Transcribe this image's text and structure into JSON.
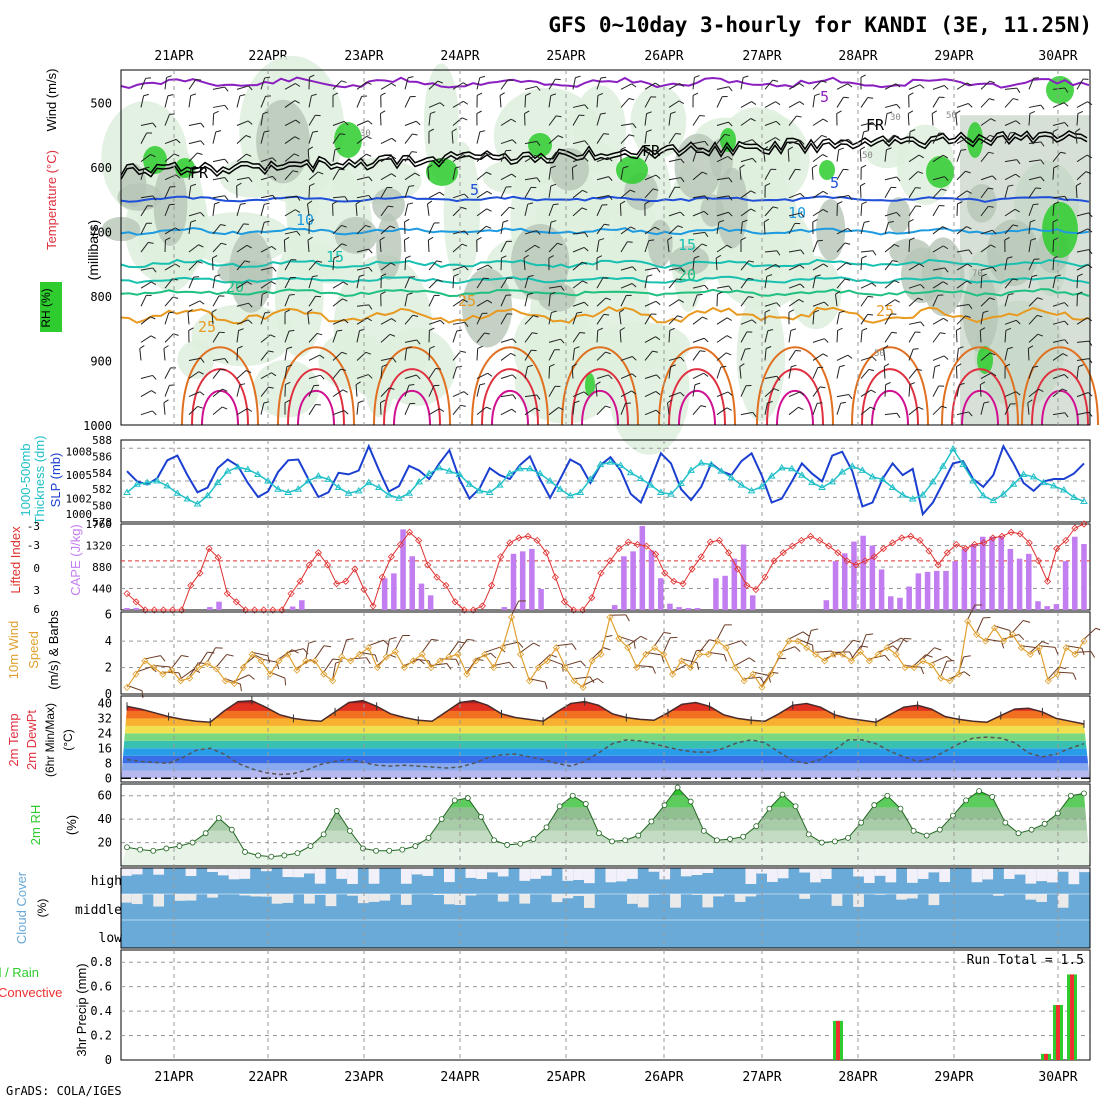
{
  "title": "GFS 0~10day 3-hourly for KANDI (3E, 11.25N)",
  "footer": "GrADS: COLA/IGES",
  "dates": [
    "21APR",
    "22APR",
    "23APR",
    "24APR",
    "25APR",
    "26APR",
    "27APR",
    "28APR",
    "29APR",
    "30APR"
  ],
  "colors": {
    "rh_green": "#2ecc2e",
    "rh_light": "#dff0df",
    "rh_grey": "#b7c6b7",
    "wind_purple": "#8a1fc0",
    "freezing": "#000000",
    "temp_blue": "#1f4fd8",
    "temp_sky": "#1e9be0",
    "temp_teal": "#18c0b0",
    "temp_green": "#1fc080",
    "temp_orange": "#e89a20",
    "temp_dorange": "#e07020",
    "temp_red": "#e03040",
    "temp_magenta": "#d01090",
    "slp": "#1b3fd0",
    "thick": "#22c0c8",
    "cape": "#c27ef0",
    "li": "#e03030",
    "wind10": "#e0a030",
    "barb": "#6b3a24",
    "dewpt": "#555555",
    "rh2m": "#2ecc2e",
    "cloud": "#6aaad8",
    "precip_rain": "#2ecc2e",
    "precip_conv": "#ee3030"
  },
  "panels": {
    "upper": {
      "left_labels": [
        "RH (%)",
        "Temperature (°C)",
        "Wind (m/s)",
        "(millibars)"
      ],
      "y_ticks": [
        "500",
        "600",
        "700",
        "800",
        "900",
        "1000"
      ],
      "contour_labels": [
        "5",
        "FR",
        "FR",
        "FR",
        "5",
        "5",
        "10",
        "10",
        "15",
        "15",
        "20",
        "20",
        "25",
        "25",
        "25",
        "30",
        "30",
        "50",
        "50",
        "50",
        "70"
      ]
    },
    "slp": {
      "left_labels": [
        "Thickness (dm)",
        "1000-500mb",
        "SLP (mb)"
      ],
      "y_left": [
        "588",
        "586",
        "584",
        "582",
        "580",
        "578"
      ],
      "y_right": [
        "1008",
        "1005",
        "1002",
        "1000"
      ]
    },
    "cape": {
      "left_labels": [
        "Lifted Index",
        "CAPE (J/kg)"
      ],
      "y_left": [
        "-3",
        "-3",
        "0",
        "3",
        "6"
      ],
      "y_right": [
        "1760",
        "1320",
        "880",
        "440"
      ]
    },
    "wind10": {
      "left_labels": [
        "10m Wind",
        "Speed",
        "(m/s) & Barbs"
      ],
      "y_ticks": [
        "6",
        "4",
        "2",
        "0"
      ]
    },
    "temp2m": {
      "left_labels": [
        "2m Temp",
        "2m DewPt",
        "(6hr Min/Max)",
        "(°C)"
      ],
      "y_ticks": [
        "40",
        "32",
        "24",
        "16",
        "8",
        "0"
      ]
    },
    "rh2m": {
      "left_labels": [
        "2m RH",
        "(%)"
      ],
      "y_ticks": [
        "60",
        "40",
        "20"
      ]
    },
    "cloud": {
      "left_labels": [
        "Cloud Cover",
        "(%)"
      ],
      "levels": [
        "high",
        "middle",
        "low"
      ]
    },
    "precip": {
      "left_labels": [
        "Total / Rain",
        "Convective",
        "3hr Precip (mm)"
      ],
      "y_ticks": [
        "0.8",
        "0.6",
        "0.4",
        "0.2",
        "0"
      ],
      "run_total": "Run Total = 1.5"
    }
  },
  "chart_data": [
    {
      "type": "line",
      "name": "slp_thickness",
      "x_unit": "3-hourly steps",
      "series": [
        {
          "name": "SLP (mb)",
          "values": [
            1005.5,
            1004.2,
            1003.8,
            1004.6,
            1006.9,
            1007.5,
            1005.0,
            1002.8,
            1003.4,
            1005.9,
            1007.0,
            1006.2,
            1004.0,
            1002.2,
            1002.9,
            1005.4,
            1006.9,
            1007.0,
            1004.5,
            1002.2,
            1002.8,
            1005.3,
            1005.1,
            1005.6,
            1008.7,
            1005.7,
            1002.9,
            1003.6,
            1006.2,
            1005.6,
            1004.5,
            1006.5,
            1008.2,
            1004.5,
            1002.0,
            1003.3,
            1005.9,
            1005.0,
            1004.5,
            1006.3,
            1007.4,
            1004.5,
            1002.1,
            1004.5,
            1007.0,
            1006.3,
            1004.0,
            1006.3,
            1007.3,
            1005.6,
            1002.6,
            1001.5,
            1004.5,
            1007.8,
            1006.5,
            1003.2,
            1001.8,
            1003.5,
            1006.5,
            1005.5,
            1005.0,
            1006.8,
            1007.8,
            1005.0,
            1001.5,
            1002.0,
            1004.2,
            1006.5,
            1005.2,
            1004.2,
            1007.5,
            1008.0,
            1005.5,
            1001.0,
            1001.5,
            1004.5,
            1006.5,
            1005.0,
            1005.8,
            1000.0,
            1001.5,
            1004.0,
            1006.5,
            1006.8,
            1004.5,
            1003.5,
            1005.0,
            1008.7,
            1006.5,
            1004.0,
            1003.0,
            1004.2,
            1004.5,
            1004.5,
            1005.2,
            1006.5
          ]
        },
        {
          "name": "Thickness (dm)",
          "values": [
            581.6,
            582.6,
            582.8,
            583.0,
            582.4,
            581.5,
            580.8,
            580.2,
            581.2,
            582.8,
            584.2,
            584.7,
            584.4,
            583.8,
            583.0,
            582.0,
            581.6,
            582.0,
            583.0,
            583.6,
            583.2,
            582.2,
            581.5,
            581.8,
            582.8,
            582.2,
            581.3,
            580.9,
            581.5,
            582.9,
            583.9,
            584.6,
            584.2,
            583.8,
            582.6,
            581.8,
            581.6,
            582.5,
            583.9,
            584.5,
            584.5,
            583.9,
            583.0,
            582.0,
            581.2,
            581.6,
            583.2,
            585.0,
            585.3,
            584.9,
            584.0,
            583.3,
            582.5,
            581.6,
            581.4,
            582.7,
            584.3,
            585.2,
            585.0,
            584.2,
            583.4,
            582.5,
            581.8,
            582.3,
            583.6,
            584.6,
            584.5,
            583.7,
            582.8,
            582.2,
            582.9,
            584.1,
            584.8,
            584.3,
            583.5,
            583.2,
            582.2,
            581.3,
            580.8,
            581.3,
            582.9,
            584.8,
            586.9,
            585.0,
            583.0,
            581.2,
            580.6,
            581.4,
            582.6,
            583.8,
            583.5,
            582.8,
            582.4,
            581.9,
            581.0,
            580.5
          ]
        }
      ]
    },
    {
      "type": "bar",
      "name": "cape_li",
      "series": [
        {
          "name": "CAPE (J/kg)",
          "values": [
            40,
            40,
            0,
            0,
            0,
            0,
            0,
            0,
            0,
            60,
            170,
            0,
            0,
            0,
            0,
            0,
            0,
            0,
            70,
            200,
            0,
            0,
            0,
            0,
            0,
            0,
            0,
            0,
            650,
            750,
            1650,
            1100,
            540,
            300,
            0,
            0,
            0,
            0,
            0,
            0,
            0,
            60,
            1150,
            1200,
            1250,
            430,
            0,
            0,
            0,
            0,
            0,
            0,
            0,
            100,
            1100,
            1200,
            1720,
            1220,
            650,
            130,
            60,
            40,
            40,
            0,
            650,
            700,
            1050,
            1340,
            300,
            0,
            0,
            0,
            0,
            0,
            0,
            0,
            200,
            1000,
            1160,
            1400,
            1520,
            1320,
            830,
            280,
            250,
            480,
            750,
            780,
            800,
            800,
            1000,
            1250,
            1350,
            1500,
            1500,
            1500,
            1250,
            1050,
            1150,
            180,
            80,
            120,
            1000,
            1500,
            1350
          ]
        },
        {
          "name": "Lifted Index",
          "values": [
            4.0,
            5.0,
            6.0,
            6.0,
            6.0,
            6.0,
            6.0,
            3.0,
            1.5,
            -1.5,
            -0.4,
            4.0,
            5.0,
            6.0,
            6.0,
            6.0,
            6.0,
            6.0,
            4.0,
            2.5,
            0.5,
            -1.0,
            0.5,
            2.8,
            2.5,
            1.0,
            3.5,
            5.5,
            2.0,
            -0.5,
            -2.0,
            -3.5,
            -2.5,
            0.5,
            2.0,
            3.0,
            5.0,
            6.0,
            6.0,
            5.5,
            3.0,
            -0.5,
            -2.2,
            -2.8,
            -3.0,
            -2.5,
            -1.0,
            2.0,
            5.0,
            6.0,
            6.0,
            4.5,
            1.5,
            0.0,
            -1.5,
            -2.3,
            -2.0,
            -1.8,
            -0.8,
            1.5,
            2.5,
            2.8,
            1.0,
            -0.5,
            -2.3,
            -2.5,
            -1.0,
            1.0,
            3.0,
            3.5,
            2.0,
            0.0,
            -1.0,
            -1.8,
            -2.5,
            -3.0,
            -2.5,
            -1.8,
            -1.0,
            0.0,
            0.5,
            0.0,
            -0.5,
            -1.5,
            -2.2,
            -2.8,
            -3.0,
            -2.5,
            -1.2,
            0.5,
            -1.0,
            -2.0,
            -1.5,
            -2.0,
            -2.2,
            -2.8,
            -3.0,
            -3.5,
            -3.3,
            -2.2,
            0.0,
            2.5,
            -1.5,
            -2.5,
            -4.0,
            -4.5
          ]
        }
      ],
      "ylim": [
        0,
        1760
      ]
    },
    {
      "type": "line",
      "name": "wind10m",
      "series": [
        {
          "name": "10m Wind Speed (m/s)",
          "values": [
            0.5,
            1.5,
            2.5,
            2.0,
            1.5,
            1.8,
            1.0,
            1.2,
            2.0,
            2.3,
            1.9,
            1.0,
            0.8,
            2.0,
            3.0,
            2.5,
            1.5,
            2.5,
            3.0,
            1.8,
            2.5,
            2.5,
            1.5,
            1.0,
            2.8,
            2.5,
            3.0,
            3.5,
            2.0,
            2.8,
            3.2,
            2.0,
            2.5,
            3.0,
            2.0,
            2.5,
            2.8,
            3.0,
            1.5,
            2.5,
            3.0,
            2.0,
            3.5,
            5.8,
            3.0,
            1.0,
            2.0,
            2.5,
            3.5,
            2.0,
            1.0,
            0.5,
            2.5,
            3.0,
            5.8,
            4.2,
            3.5,
            2.0,
            3.0,
            3.5,
            3.0,
            1.5,
            2.5,
            2.0,
            3.0,
            3.0,
            4.0,
            3.5,
            2.0,
            1.0,
            1.5,
            0.5,
            1.5,
            3.0,
            4.0,
            4.0,
            3.5,
            3.0,
            2.5,
            3.0,
            3.0,
            2.5,
            3.2,
            2.5,
            3.0,
            3.5,
            3.0,
            2.0,
            2.0,
            2.5,
            2.2,
            1.2,
            1.0,
            1.5,
            5.5,
            4.5,
            4.0,
            5.0,
            4.0,
            4.5,
            3.5,
            3.0,
            3.5,
            1.0,
            1.5,
            3.5,
            3.0,
            4.0
          ]
        }
      ],
      "ylim": [
        0,
        6
      ]
    },
    {
      "type": "area",
      "name": "temp2m",
      "series": [
        {
          "name": "2m Temp (°C)",
          "values": [
            38.5,
            37.0,
            35.0,
            33.0,
            31.5,
            30.5,
            30.0,
            36.0,
            41.0,
            41.5,
            38.0,
            34.0,
            32.0,
            31.0,
            30.5,
            35.5,
            40.5,
            41.5,
            38.5,
            34.5,
            32.5,
            31.0,
            30.5,
            35.5,
            40.5,
            41.5,
            39.0,
            34.5,
            32.5,
            31.5,
            30.5,
            35.5,
            40.0,
            41.0,
            39.0,
            34.5,
            32.5,
            31.5,
            31.0,
            35.0,
            39.5,
            40.5,
            38.5,
            34.0,
            32.0,
            31.0,
            30.5,
            34.5,
            39.0,
            40.0,
            38.0,
            34.0,
            32.0,
            31.0,
            30.0,
            34.0,
            38.0,
            39.0,
            37.0,
            33.0,
            31.5,
            30.5,
            30.0,
            33.5,
            37.0,
            37.5,
            35.5,
            32.0,
            30.5,
            29.0
          ]
        },
        {
          "name": "2m DewPt (°C)",
          "values": [
            10.0,
            9.0,
            8.5,
            8.0,
            11.0,
            15.0,
            16.0,
            13.0,
            8.0,
            5.0,
            3.0,
            2.0,
            2.5,
            4.5,
            7.5,
            9.0,
            10.0,
            8.5,
            7.0,
            6.5,
            7.0,
            6.5,
            6.0,
            5.5,
            6.0,
            8.0,
            11.0,
            12.5,
            13.0,
            11.5,
            10.0,
            8.0,
            6.5,
            9.0,
            13.5,
            18.5,
            20.5,
            20.0,
            18.5,
            16.5,
            15.0,
            14.0,
            14.0,
            16.0,
            19.0,
            20.5,
            19.0,
            14.0,
            9.5,
            8.0,
            10.0,
            15.0,
            20.5,
            20.5,
            18.5,
            14.5,
            11.5,
            9.0,
            10.5,
            14.5,
            18.5,
            21.5,
            22.0,
            21.5,
            19.0,
            13.5,
            11.5,
            13.0,
            16.0,
            18.5
          ]
        }
      ],
      "ylim": [
        0,
        44
      ]
    },
    {
      "type": "area",
      "name": "rh2m",
      "series": [
        {
          "name": "2m RH (%)",
          "values": [
            16,
            14,
            13,
            15,
            17,
            20,
            28,
            41,
            31,
            12,
            9,
            8,
            9,
            11,
            17,
            27,
            47,
            30,
            15,
            13,
            13,
            14,
            17,
            24,
            40,
            56,
            58,
            42,
            22,
            18,
            19,
            23,
            33,
            51,
            60,
            53,
            28,
            21,
            22,
            26,
            38,
            52,
            67,
            55,
            30,
            22,
            23,
            25,
            34,
            49,
            61,
            51,
            27,
            20,
            21,
            24,
            37,
            52,
            60,
            49,
            30,
            26,
            31,
            43,
            56,
            64,
            59,
            37,
            28,
            31,
            36,
            45,
            60,
            62
          ]
        }
      ],
      "ylim": [
        0,
        70
      ]
    },
    {
      "type": "bar",
      "name": "precip3h",
      "series": [
        {
          "name": "Total / Rain (mm)",
          "values": [
            0.32,
            0.05,
            0.45,
            0.7
          ]
        },
        {
          "name": "Convective (mm)",
          "values": [
            0.32,
            0.05,
            0.45,
            0.7
          ]
        }
      ],
      "ylim": [
        0,
        0.9
      ]
    }
  ]
}
